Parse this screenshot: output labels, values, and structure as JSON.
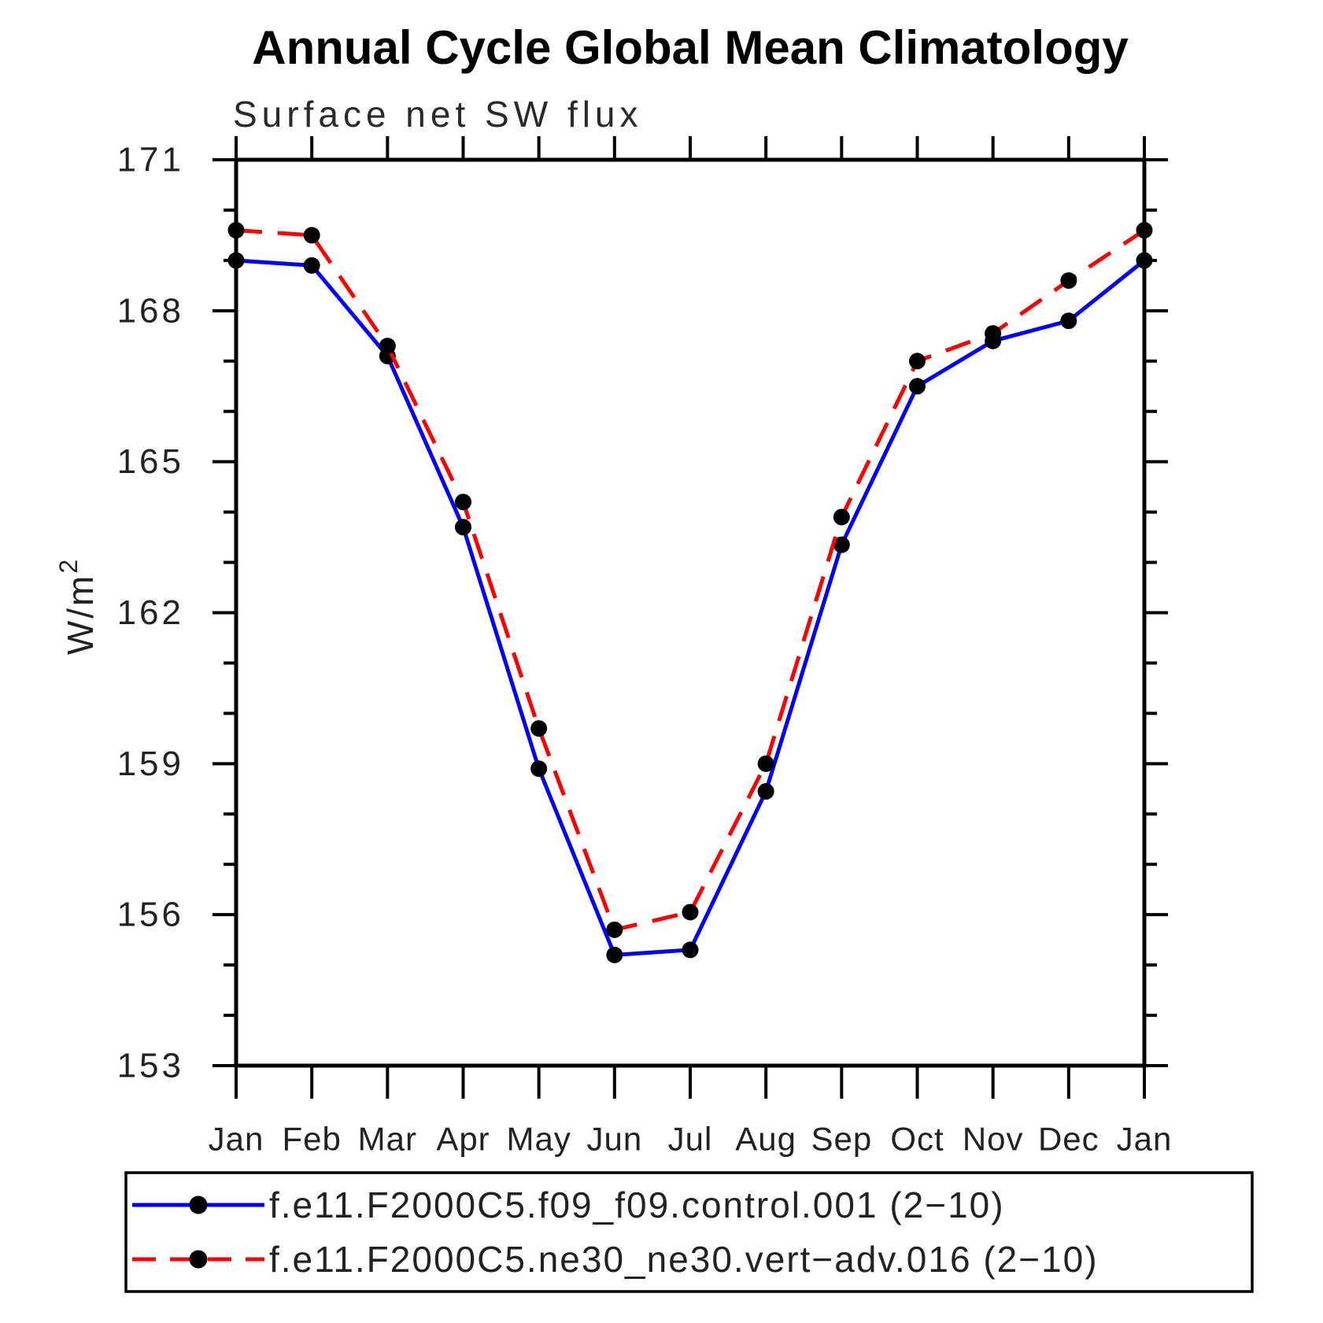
{
  "title": "Annual Cycle Global Mean Climatology",
  "subtitle": "Surface net SW flux",
  "chart_data": {
    "type": "line",
    "categories": [
      "Jan",
      "Feb",
      "Mar",
      "Apr",
      "May",
      "Jun",
      "Jul",
      "Aug",
      "Sep",
      "Oct",
      "Nov",
      "Dec",
      "Jan"
    ],
    "series": [
      {
        "name": "f.e11.F2000C5.f09_f09.control.001 (2−10)",
        "color": "#0000ff",
        "style": "solid",
        "marker": "black-dot",
        "values": [
          169.0,
          168.9,
          167.1,
          163.7,
          158.9,
          155.2,
          155.3,
          158.45,
          163.35,
          166.5,
          167.4,
          167.8,
          169.0
        ]
      },
      {
        "name": "f.e11.F2000C5.ne30_ne30.vert−adv.016 (2−10)",
        "color": "#ff0000",
        "style": "dashed",
        "marker": "black-dot",
        "values": [
          169.6,
          169.5,
          167.3,
          164.2,
          159.7,
          155.7,
          156.05,
          159.0,
          163.9,
          167.0,
          167.55,
          168.6,
          169.6
        ]
      }
    ],
    "title": "Annual Cycle Global Mean Climatology",
    "subtitle": "Surface net SW flux",
    "xlabel": "",
    "ylabel": "W/m",
    "ylabel_exponent": "2",
    "ylim": [
      153,
      171
    ],
    "yticks_major": [
      153,
      156,
      159,
      162,
      165,
      168,
      171
    ],
    "ytick_labels": [
      "153",
      "156",
      "159",
      "162",
      "165",
      "168",
      "171"
    ],
    "ytick_minor_step": 1,
    "grid": "off",
    "legend_position": "bottom",
    "marker_color": "#000000"
  },
  "legend": {
    "entries": [
      {
        "label": "f.e11.F2000C5.f09_f09.control.001 (2−10)",
        "color": "#0000ff",
        "style": "solid"
      },
      {
        "label": "f.e11.F2000C5.ne30_ne30.vert−adv.016 (2−10)",
        "color": "#ff0000",
        "style": "dashed"
      }
    ]
  }
}
